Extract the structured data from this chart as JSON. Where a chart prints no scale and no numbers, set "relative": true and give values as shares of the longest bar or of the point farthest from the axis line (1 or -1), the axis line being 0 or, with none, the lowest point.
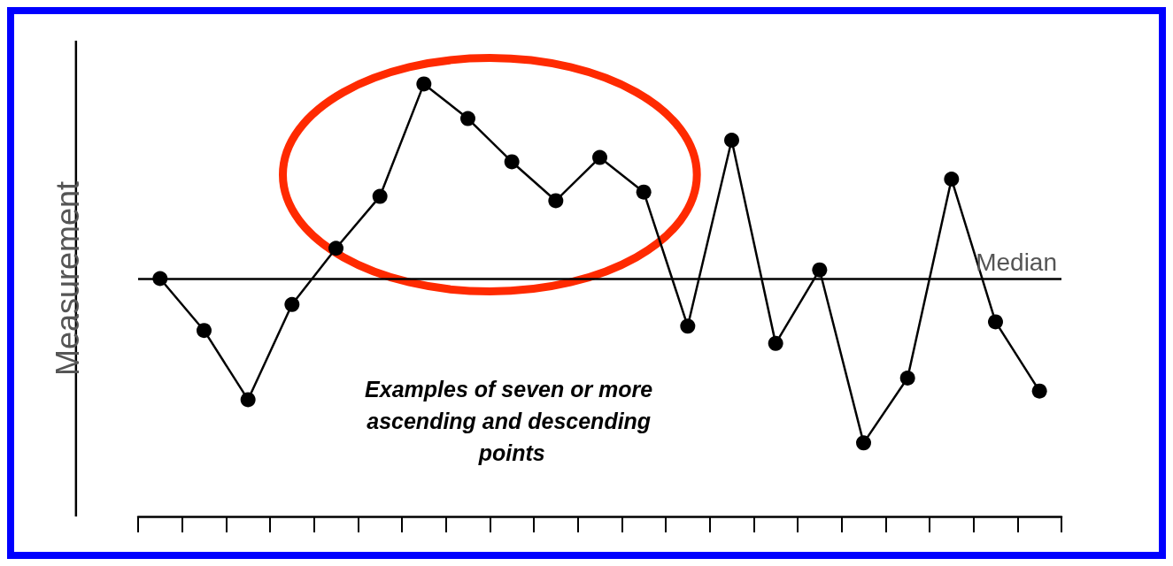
{
  "chart_data": {
    "type": "line",
    "ylabel": "Measurement",
    "relative": true,
    "marker": "circle",
    "line_style": "solid",
    "grid": false,
    "categories": [
      null,
      null,
      null,
      null,
      null,
      null,
      null,
      null,
      null,
      null,
      null,
      null,
      null,
      null,
      null,
      null,
      null,
      null,
      null,
      null,
      null
    ],
    "series": [
      {
        "color": "#000000",
        "values": [
          0.55,
          0.43,
          0.27,
          0.49,
          0.62,
          0.74,
          1,
          0.92,
          0.82,
          0.73,
          0.83,
          0.75,
          0.44,
          0.87,
          0.4,
          0.57,
          0.17,
          0.32,
          0.78,
          0.45,
          0.29
        ]
      }
    ],
    "ref_lines": [
      {
        "axis": "y",
        "value": 0.55,
        "label": "Median",
        "color": "#000000",
        "line_style": "solid"
      }
    ],
    "annotations": [
      "Examples of seven or more ascending and descending points"
    ]
  }
}
